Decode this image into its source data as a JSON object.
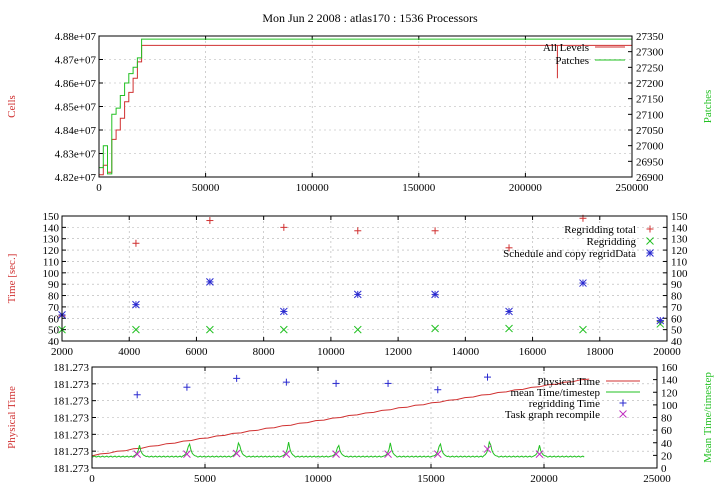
{
  "title": "Mon Jun 2 2008 : atlas170 : 1536 Processors",
  "colors": {
    "red": "#d03030",
    "green": "#22c022",
    "blue": "#2a2ad0",
    "magenta": "#c030c0",
    "grid": "#b0b0b0"
  },
  "chart_data": [
    {
      "type": "line",
      "xlim": [
        0,
        250000
      ],
      "xticks": [
        "0",
        "50000",
        "100000",
        "150000",
        "200000",
        "250000"
      ],
      "xtick_values": [
        0,
        50000,
        100000,
        150000,
        200000,
        250000
      ],
      "ylabel_left": "Cells",
      "ylabel_right": "Patches",
      "ylim_left": [
        48200000,
        48800000
      ],
      "ylim_right": [
        26900,
        27350
      ],
      "yticks_left": [
        "4.82e+07",
        "4.83e+07",
        "4.84e+07",
        "4.85e+07",
        "4.86e+07",
        "4.87e+07",
        "4.88e+07"
      ],
      "yticks_left_values": [
        48200000,
        48300000,
        48400000,
        48500000,
        48600000,
        48700000,
        48800000
      ],
      "yticks_right": [
        "26900",
        "26950",
        "27000",
        "27050",
        "27100",
        "27150",
        "27200",
        "27250",
        "27300",
        "27350"
      ],
      "yticks_right_values": [
        26900,
        26950,
        27000,
        27050,
        27100,
        27150,
        27200,
        27250,
        27300,
        27350
      ],
      "legend_position": "top-right",
      "series": [
        {
          "name": "All Levels",
          "axis": "left",
          "color": "red",
          "step": true,
          "x": [
            0,
            2000,
            4000,
            6000,
            8000,
            10000,
            12000,
            14000,
            16000,
            18000,
            20000,
            215000,
            215000,
            215000,
            250000
          ],
          "y": [
            48210000,
            48250000,
            48220000,
            48360000,
            48400000,
            48450000,
            48520000,
            48560000,
            48620000,
            48690000,
            48760000,
            48760000,
            48620000,
            48760000,
            48760000
          ]
        },
        {
          "name": "Patches",
          "axis": "right",
          "color": "green",
          "step": true,
          "x": [
            0,
            2000,
            4000,
            6000,
            8000,
            10000,
            12000,
            14000,
            16000,
            18000,
            20000,
            250000
          ],
          "y": [
            26930,
            27000,
            26910,
            27100,
            27120,
            27160,
            27200,
            27230,
            27250,
            27280,
            27340,
            27340
          ]
        }
      ]
    },
    {
      "type": "scatter",
      "xlim": [
        2000,
        20000
      ],
      "xticks": [
        "2000",
        "4000",
        "6000",
        "8000",
        "10000",
        "12000",
        "14000",
        "16000",
        "18000",
        "20000"
      ],
      "xtick_values": [
        2000,
        4000,
        6000,
        8000,
        10000,
        12000,
        14000,
        16000,
        18000,
        20000
      ],
      "ylabel_left": "Time [sec.]",
      "ylim": [
        40,
        150
      ],
      "yticks": [
        "40",
        "50",
        "60",
        "70",
        "80",
        "90",
        "100",
        "110",
        "120",
        "130",
        "140",
        "150"
      ],
      "ytick_values": [
        40,
        50,
        60,
        70,
        80,
        90,
        100,
        110,
        120,
        130,
        140,
        150
      ],
      "legend_position": "top-right",
      "series": [
        {
          "name": "Regridding total",
          "marker": "plus",
          "color": "red",
          "x": [
            2000,
            4200,
            6400,
            8600,
            10800,
            13100,
            15300,
            17500,
            19800
          ],
          "y": [
            62,
            126,
            146,
            140,
            137,
            137,
            122,
            148,
            57
          ]
        },
        {
          "name": "Regridding",
          "marker": "cross",
          "color": "green",
          "x": [
            2000,
            4200,
            6400,
            8600,
            10800,
            13100,
            15300,
            17500,
            19800
          ],
          "y": [
            50,
            50,
            50,
            50,
            50,
            51,
            51,
            50,
            55
          ]
        },
        {
          "name": "Schedule and copy regridData",
          "marker": "star",
          "color": "blue",
          "x": [
            2000,
            4200,
            6400,
            8600,
            10800,
            13100,
            15300,
            17500,
            19800
          ],
          "y": [
            63,
            72,
            92,
            66,
            81,
            81,
            66,
            91,
            58
          ]
        }
      ]
    },
    {
      "type": "line",
      "xlim": [
        0,
        25000
      ],
      "xticks": [
        "0",
        "5000",
        "10000",
        "15000",
        "20000",
        "25000"
      ],
      "xtick_values": [
        0,
        5000,
        10000,
        15000,
        20000,
        25000
      ],
      "ylabel_left": "Physical Time",
      "ylabel_right": "Mean Time/timestep",
      "ylim_left": [
        0,
        100
      ],
      "yticks_left": [
        "181.273",
        "181.273",
        "181.273",
        "181.273",
        "181.273",
        "181.273",
        "181.273"
      ],
      "yticks_left_values": [
        0,
        16.67,
        33.33,
        50,
        66.67,
        83.33,
        100
      ],
      "ylim_right": [
        0,
        160
      ],
      "yticks_right": [
        "0",
        "20",
        "40",
        "60",
        "80",
        "100",
        "120",
        "140",
        "160"
      ],
      "yticks_right_values": [
        0,
        20,
        40,
        60,
        80,
        100,
        120,
        140,
        160
      ],
      "legend_position": "top-right",
      "physical_time": {
        "name": "Physical Time",
        "color": "red",
        "x": [
          0,
          22000
        ],
        "y": [
          12,
          88
        ]
      },
      "mean_time": {
        "name": "mean Time/timestep",
        "color": "green",
        "x_start": 0,
        "x_end": 21800,
        "baseline": 18,
        "peaks": [
          {
            "x": 2100,
            "y": 36
          },
          {
            "x": 4300,
            "y": 43
          },
          {
            "x": 6500,
            "y": 45
          },
          {
            "x": 8700,
            "y": 41
          },
          {
            "x": 10900,
            "y": 40
          },
          {
            "x": 13200,
            "y": 40
          },
          {
            "x": 15400,
            "y": 43
          },
          {
            "x": 17600,
            "y": 47
          },
          {
            "x": 19800,
            "y": 36
          }
        ]
      },
      "regridding": {
        "name": "regridding Time",
        "marker": "plus",
        "color": "blue",
        "x": [
          2000,
          4200,
          6400,
          8600,
          10800,
          13100,
          15300,
          17500
        ],
        "y": [
          116,
          128,
          142,
          136,
          134,
          134,
          124,
          144
        ]
      },
      "recompile": {
        "name": "Task graph recompile",
        "marker": "cross",
        "color": "magenta",
        "x": [
          2000,
          4200,
          6400,
          8600,
          10800,
          13100,
          15300,
          17500,
          19800
        ],
        "y": [
          22,
          22,
          23,
          22,
          22,
          22,
          22,
          30,
          22
        ]
      }
    }
  ]
}
